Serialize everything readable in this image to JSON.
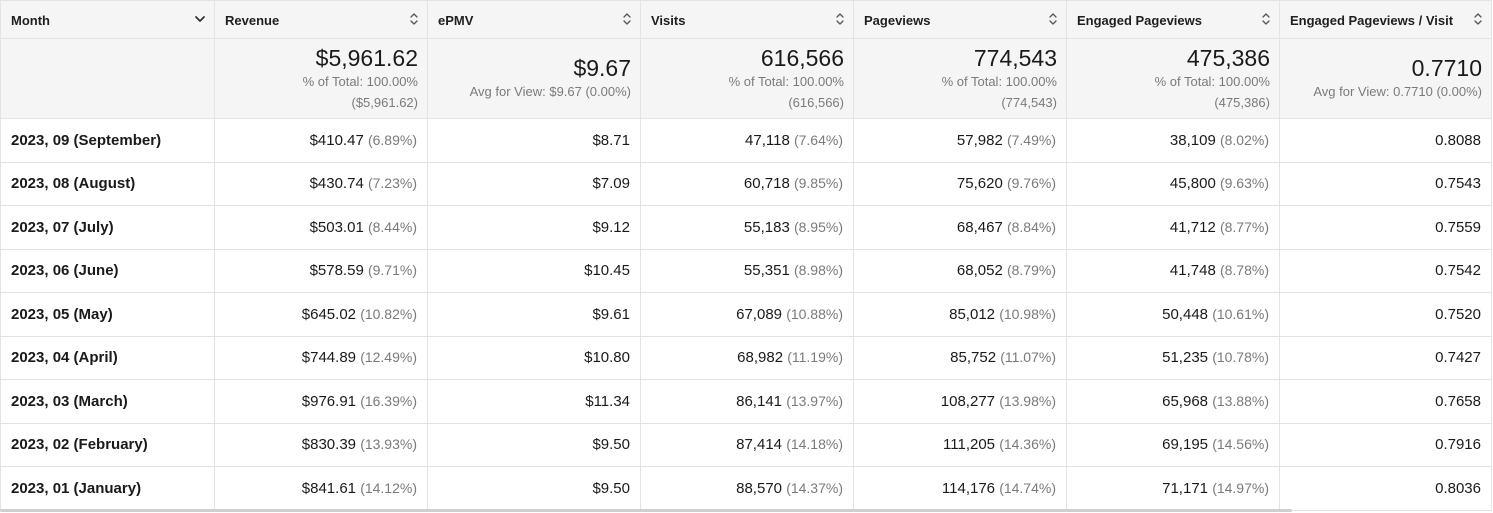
{
  "columns": [
    {
      "label": "Month",
      "icon": "chevron-down-icon"
    },
    {
      "label": "Revenue",
      "icon": "sort-icon"
    },
    {
      "label": "ePMV",
      "icon": "sort-icon"
    },
    {
      "label": "Visits",
      "icon": "sort-icon"
    },
    {
      "label": "Pageviews",
      "icon": "sort-icon"
    },
    {
      "label": "Engaged Pageviews",
      "icon": "sort-icon"
    },
    {
      "label": "Engaged Pageviews / Visit",
      "icon": "sort-icon"
    }
  ],
  "summary": {
    "revenue": {
      "value": "$5,961.62",
      "line1": "% of Total: 100.00%",
      "line2": "($5,961.62)"
    },
    "epmv": {
      "value": "$9.67",
      "line1": "Avg for View: $9.67 (0.00%)"
    },
    "visits": {
      "value": "616,566",
      "line1": "% of Total: 100.00%",
      "line2": "(616,566)"
    },
    "pageviews": {
      "value": "774,543",
      "line1": "% of Total: 100.00%",
      "line2": "(774,543)"
    },
    "engaged": {
      "value": "475,386",
      "line1": "% of Total: 100.00%",
      "line2": "(475,386)"
    },
    "epv": {
      "value": "0.7710",
      "line1": "Avg for View: 0.7710 (0.00%)"
    }
  },
  "rows": [
    {
      "month": "2023, 09 (September)",
      "revenue": "$410.47",
      "revenue_pct": "(6.89%)",
      "epmv": "$8.71",
      "visits": "47,118",
      "visits_pct": "(7.64%)",
      "pageviews": "57,982",
      "pageviews_pct": "(7.49%)",
      "engaged": "38,109",
      "engaged_pct": "(8.02%)",
      "epv": "0.8088"
    },
    {
      "month": "2023, 08 (August)",
      "revenue": "$430.74",
      "revenue_pct": "(7.23%)",
      "epmv": "$7.09",
      "visits": "60,718",
      "visits_pct": "(9.85%)",
      "pageviews": "75,620",
      "pageviews_pct": "(9.76%)",
      "engaged": "45,800",
      "engaged_pct": "(9.63%)",
      "epv": "0.7543"
    },
    {
      "month": "2023, 07 (July)",
      "revenue": "$503.01",
      "revenue_pct": "(8.44%)",
      "epmv": "$9.12",
      "visits": "55,183",
      "visits_pct": "(8.95%)",
      "pageviews": "68,467",
      "pageviews_pct": "(8.84%)",
      "engaged": "41,712",
      "engaged_pct": "(8.77%)",
      "epv": "0.7559"
    },
    {
      "month": "2023, 06 (June)",
      "revenue": "$578.59",
      "revenue_pct": "(9.71%)",
      "epmv": "$10.45",
      "visits": "55,351",
      "visits_pct": "(8.98%)",
      "pageviews": "68,052",
      "pageviews_pct": "(8.79%)",
      "engaged": "41,748",
      "engaged_pct": "(8.78%)",
      "epv": "0.7542"
    },
    {
      "month": "2023, 05 (May)",
      "revenue": "$645.02",
      "revenue_pct": "(10.82%)",
      "epmv": "$9.61",
      "visits": "67,089",
      "visits_pct": "(10.88%)",
      "pageviews": "85,012",
      "pageviews_pct": "(10.98%)",
      "engaged": "50,448",
      "engaged_pct": "(10.61%)",
      "epv": "0.7520"
    },
    {
      "month": "2023, 04 (April)",
      "revenue": "$744.89",
      "revenue_pct": "(12.49%)",
      "epmv": "$10.80",
      "visits": "68,982",
      "visits_pct": "(11.19%)",
      "pageviews": "85,752",
      "pageviews_pct": "(11.07%)",
      "engaged": "51,235",
      "engaged_pct": "(10.78%)",
      "epv": "0.7427"
    },
    {
      "month": "2023, 03 (March)",
      "revenue": "$976.91",
      "revenue_pct": "(16.39%)",
      "epmv": "$11.34",
      "visits": "86,141",
      "visits_pct": "(13.97%)",
      "pageviews": "108,277",
      "pageviews_pct": "(13.98%)",
      "engaged": "65,968",
      "engaged_pct": "(13.88%)",
      "epv": "0.7658"
    },
    {
      "month": "2023, 02 (February)",
      "revenue": "$830.39",
      "revenue_pct": "(13.93%)",
      "epmv": "$9.50",
      "visits": "87,414",
      "visits_pct": "(14.18%)",
      "pageviews": "111,205",
      "pageviews_pct": "(14.36%)",
      "engaged": "69,195",
      "engaged_pct": "(14.56%)",
      "epv": "0.7916"
    },
    {
      "month": "2023, 01 (January)",
      "revenue": "$841.61",
      "revenue_pct": "(14.12%)",
      "epmv": "$9.50",
      "visits": "88,570",
      "visits_pct": "(14.37%)",
      "pageviews": "114,176",
      "pageviews_pct": "(14.74%)",
      "engaged": "71,171",
      "engaged_pct": "(14.97%)",
      "epv": "0.8036"
    }
  ]
}
